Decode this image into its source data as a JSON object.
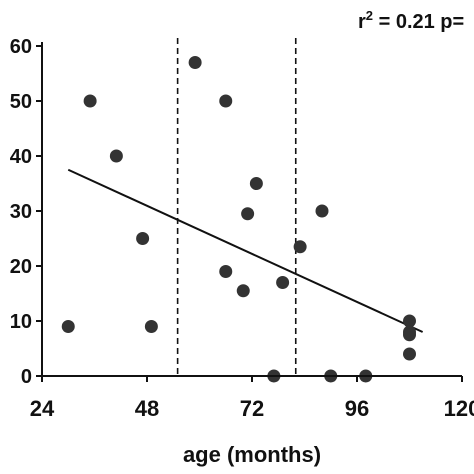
{
  "chart_data": {
    "type": "scatter",
    "title": "",
    "annotation": {
      "prefix": "r",
      "superscript": "2",
      "suffix": " = 0.21 p="
    },
    "xlabel": "age (months)",
    "ylabel": "",
    "xlim": [
      24,
      120
    ],
    "ylim": [
      0,
      60
    ],
    "x_ticks": [
      24,
      48,
      72,
      96,
      120
    ],
    "x_tick_labels": [
      "24",
      "48",
      "72",
      "96",
      "120"
    ],
    "y_ticks": [
      0,
      10,
      20,
      30,
      40,
      50,
      60
    ],
    "y_tick_labels": [
      "0",
      "10",
      "20",
      "30",
      "40",
      "50",
      "60"
    ],
    "grid": false,
    "legend": "none",
    "vlines": [
      55,
      82
    ],
    "trend_line": {
      "x": [
        30,
        111
      ],
      "y": [
        37.5,
        8
      ]
    },
    "series": [
      {
        "x": [
          30,
          35,
          41,
          47,
          49,
          59,
          66,
          66,
          70,
          71,
          73,
          77,
          79,
          83,
          88,
          90,
          98,
          108,
          108,
          108,
          108
        ],
        "y": [
          9,
          50,
          40,
          25,
          9,
          57,
          50,
          19,
          15.5,
          29.5,
          35,
          0,
          17,
          23.5,
          30,
          0,
          0,
          10,
          8,
          7.5,
          4
        ]
      }
    ],
    "colors": {
      "points": "#333333",
      "line": "#111111",
      "axis": "#111111"
    }
  }
}
